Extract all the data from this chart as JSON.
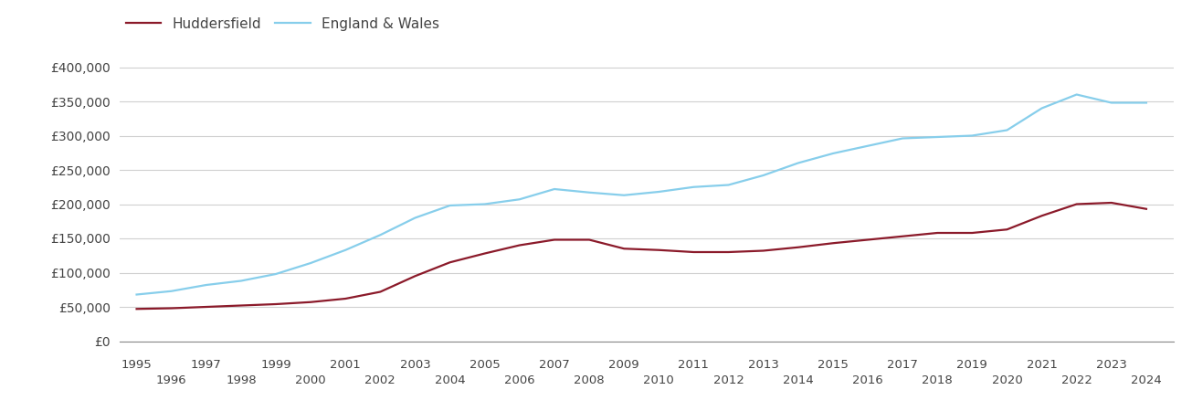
{
  "huddersfield": {
    "years": [
      1995,
      1996,
      1997,
      1998,
      1999,
      2000,
      2001,
      2002,
      2003,
      2004,
      2005,
      2006,
      2007,
      2008,
      2009,
      2010,
      2011,
      2012,
      2013,
      2014,
      2015,
      2016,
      2017,
      2018,
      2019,
      2020,
      2021,
      2022,
      2023,
      2024
    ],
    "values": [
      47000,
      48000,
      50000,
      52000,
      54000,
      57000,
      62000,
      72000,
      95000,
      115000,
      128000,
      140000,
      148000,
      148000,
      135000,
      133000,
      130000,
      130000,
      132000,
      137000,
      143000,
      148000,
      153000,
      158000,
      158000,
      163000,
      183000,
      200000,
      202000,
      193000
    ]
  },
  "england_wales": {
    "years": [
      1995,
      1996,
      1997,
      1998,
      1999,
      2000,
      2001,
      2002,
      2003,
      2004,
      2005,
      2006,
      2007,
      2008,
      2009,
      2010,
      2011,
      2012,
      2013,
      2014,
      2015,
      2016,
      2017,
      2018,
      2019,
      2020,
      2021,
      2022,
      2023,
      2024
    ],
    "values": [
      68000,
      73000,
      82000,
      88000,
      98000,
      114000,
      133000,
      155000,
      180000,
      198000,
      200000,
      207000,
      222000,
      217000,
      213000,
      218000,
      225000,
      228000,
      242000,
      260000,
      274000,
      285000,
      296000,
      298000,
      300000,
      308000,
      340000,
      360000,
      348000,
      348000
    ]
  },
  "huddersfield_color": "#8B1A2A",
  "england_wales_color": "#87CEEB",
  "huddersfield_label": "Huddersfield",
  "england_wales_label": "England & Wales",
  "ylim": [
    0,
    420000
  ],
  "yticks": [
    0,
    50000,
    100000,
    150000,
    200000,
    250000,
    300000,
    350000,
    400000
  ],
  "ytick_labels": [
    "£0",
    "£50,000",
    "£100,000",
    "£150,000",
    "£200,000",
    "£250,000",
    "£300,000",
    "£350,000",
    "£400,000"
  ],
  "xticks_odd": [
    1995,
    1997,
    1999,
    2001,
    2003,
    2005,
    2007,
    2009,
    2011,
    2013,
    2015,
    2017,
    2019,
    2021,
    2023
  ],
  "xticks_even": [
    1996,
    1998,
    2000,
    2002,
    2004,
    2006,
    2008,
    2010,
    2012,
    2014,
    2016,
    2018,
    2020,
    2022,
    2024
  ],
  "background_color": "#ffffff",
  "grid_color": "#d0d0d0",
  "line_width": 1.6
}
